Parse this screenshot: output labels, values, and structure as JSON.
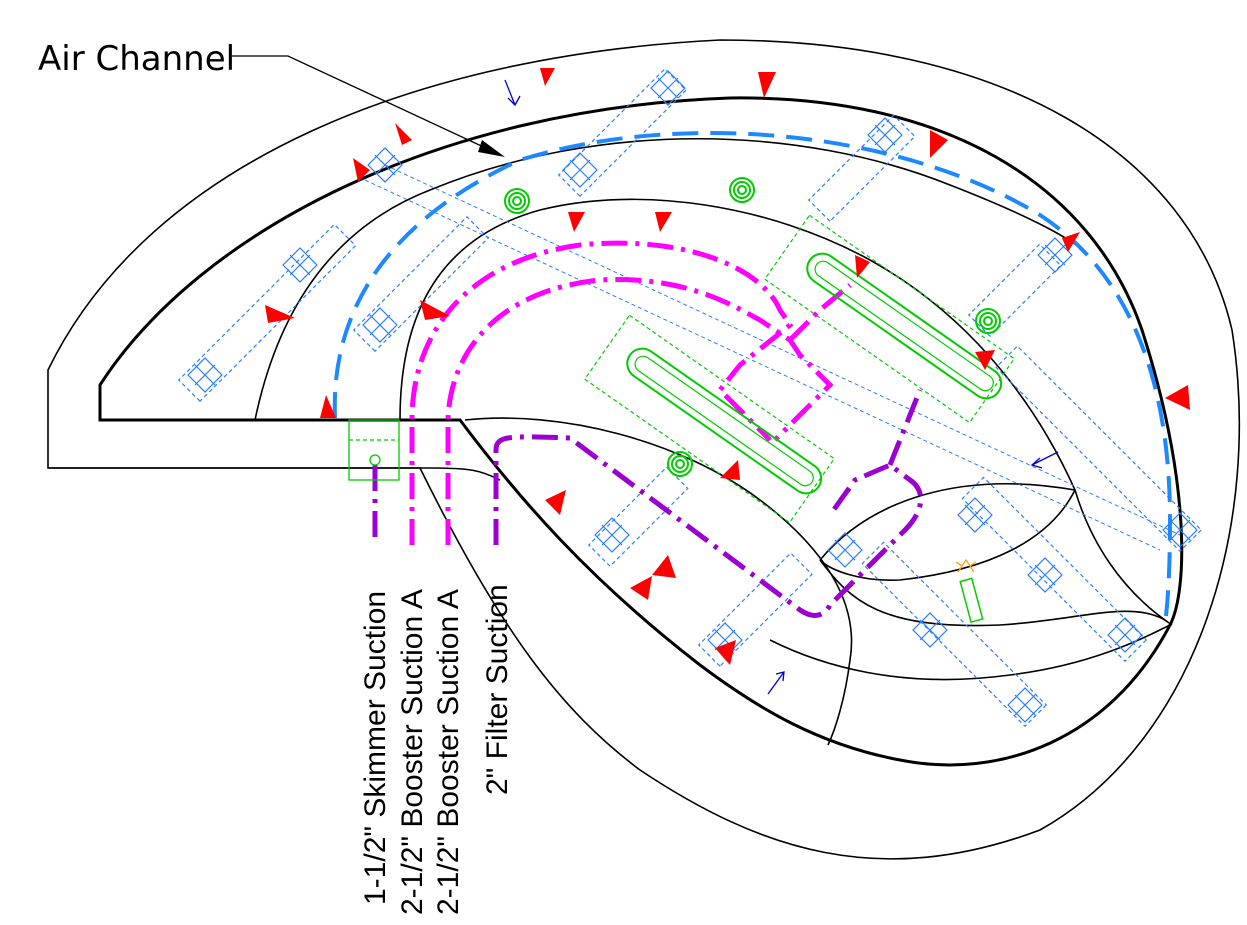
{
  "callout": {
    "label": "Air Channel"
  },
  "pipe_labels": [
    {
      "text": "1-1/2\" Skimmer Suction"
    },
    {
      "text": "2-1/2\" Booster Suction A"
    },
    {
      "text": "2-1/2\" Booster Suction A"
    },
    {
      "text": "2\" Filter Suction"
    }
  ],
  "colors": {
    "outline": "#000000",
    "air_channel": "#1e88ff",
    "jet_boxes": "#2a7fff",
    "booster_suction": "#ff00ff",
    "skimmer_and_filter_suction": "#9b00d0",
    "drains_and_benches": "#00cc00",
    "return_arrows": "#ff0000",
    "flow_arrows": "#0000cc"
  }
}
